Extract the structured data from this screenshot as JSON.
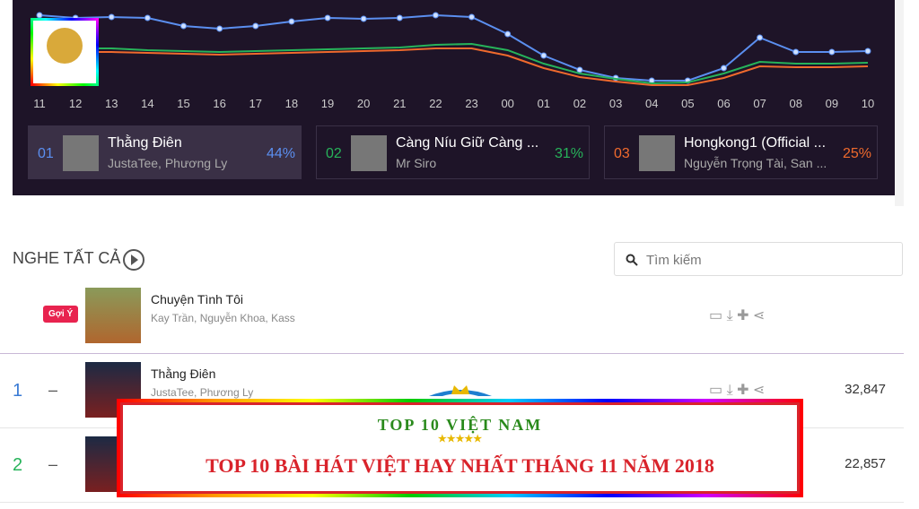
{
  "chart_data": {
    "type": "line",
    "categories": [
      "11",
      "12",
      "13",
      "14",
      "15",
      "16",
      "17",
      "18",
      "19",
      "20",
      "21",
      "22",
      "23",
      "00",
      "01",
      "02",
      "03",
      "04",
      "05",
      "06",
      "07",
      "08",
      "09",
      "10"
    ],
    "ylim": [
      0,
      100
    ],
    "series": [
      {
        "color": "#5b8ff0",
        "markers": true,
        "values": [
          83,
          80,
          81,
          80,
          71,
          68,
          71,
          76,
          80,
          79,
          80,
          83,
          81,
          62,
          38,
          22,
          13,
          10,
          10,
          24,
          58,
          42,
          42,
          43
        ]
      },
      {
        "color": "#27b35a",
        "markers": false,
        "values": [
          46,
          46,
          46,
          44,
          43,
          42,
          43,
          44,
          45,
          46,
          47,
          50,
          51,
          44,
          29,
          18,
          12,
          7,
          8,
          18,
          31,
          29,
          29,
          30
        ]
      },
      {
        "color": "#f06a2d",
        "markers": false,
        "values": [
          42,
          42,
          42,
          41,
          40,
          39,
          40,
          41,
          42,
          43,
          44,
          46,
          46,
          38,
          24,
          14,
          9,
          5,
          5,
          13,
          26,
          25,
          25,
          26
        ]
      }
    ]
  },
  "ranking": [
    {
      "rank": "01",
      "title": "Thằng Điên",
      "artist": "JustaTee, Phương Ly",
      "percent": "44%"
    },
    {
      "rank": "02",
      "title": "Càng Níu Giữ Càng ...",
      "artist": "Mr Siro",
      "percent": "31%"
    },
    {
      "rank": "03",
      "title": "Hongkong1 (Official ...",
      "artist": "Nguyễn Trọng Tài, San ...",
      "percent": "25%"
    }
  ],
  "section": {
    "title": "NGHE TẤT CẢ",
    "search": "Tìm kiếm"
  },
  "suggested": {
    "badge": "Gợi Ý",
    "title": "Chuyện Tình Tôi",
    "artist": "Kay Trần, Nguyễn Khoa, Kass"
  },
  "songs": [
    {
      "rank": "1",
      "change": "–",
      "title": "Thằng Điên",
      "artist": "JustaTee, Phương Ly",
      "plays": "32,847"
    },
    {
      "rank": "2",
      "change": "–",
      "plays": "22,857"
    }
  ],
  "banner": {
    "brand": "TOP 10 VIỆT NAM",
    "stars": "★★★★★",
    "headline": "TOP 10 BÀI HÁT VIỆT HAY NHẤT THÁNG 11 NĂM 2018"
  }
}
